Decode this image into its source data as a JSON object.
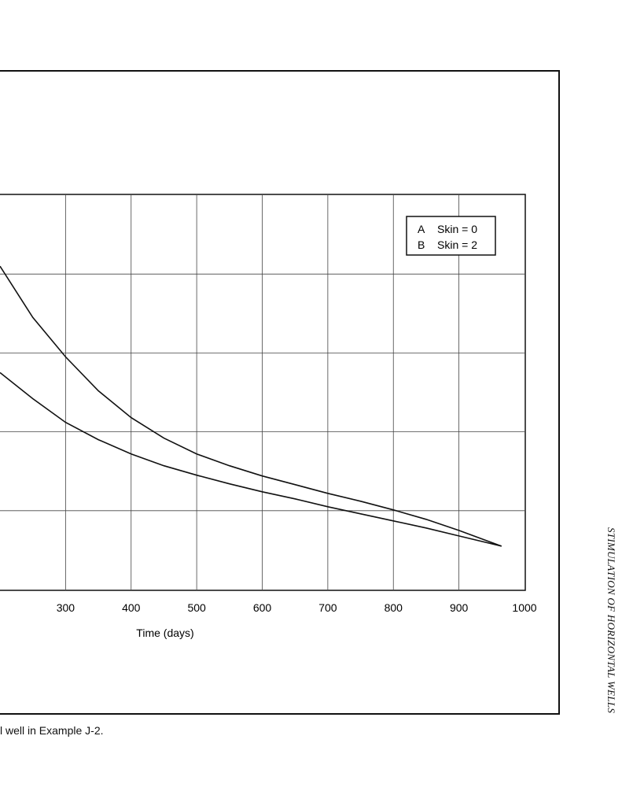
{
  "chart_data": {
    "type": "line",
    "title": "",
    "xlabel": "Time (days)",
    "ylabel": "",
    "xlim": [
      200,
      1000
    ],
    "x_ticks": [
      300,
      400,
      500,
      600,
      700,
      800,
      900,
      1000
    ],
    "x_tick_labels": [
      "300",
      "400",
      "500",
      "600",
      "700",
      "800",
      "900",
      "1000"
    ],
    "grid": true,
    "legend_position": "top-right",
    "legend": [
      {
        "key": "A",
        "label": "Skin = 0"
      },
      {
        "key": "B",
        "label": "Skin = 2"
      }
    ],
    "series": [
      {
        "name": "A",
        "x": [
          200,
          250,
          300,
          350,
          400,
          450,
          500,
          550,
          600,
          650,
          700,
          750,
          800,
          850,
          900,
          965
        ],
        "y": [
          0.41,
          0.345,
          0.295,
          0.252,
          0.218,
          0.192,
          0.172,
          0.157,
          0.144,
          0.133,
          0.122,
          0.112,
          0.101,
          0.089,
          0.075,
          0.055
        ]
      },
      {
        "name": "B",
        "x": [
          200,
          250,
          300,
          350,
          400,
          450,
          500,
          550,
          600,
          650,
          700,
          750,
          800,
          850,
          900,
          965
        ],
        "y": [
          0.275,
          0.242,
          0.212,
          0.19,
          0.172,
          0.157,
          0.145,
          0.134,
          0.124,
          0.115,
          0.105,
          0.096,
          0.087,
          0.078,
          0.068,
          0.055
        ]
      }
    ],
    "ylim": [
      0,
      0.5
    ]
  },
  "caption": "l well in Example J-2.",
  "running_head": "STIMULATION OF HORIZONTAL WELLS"
}
